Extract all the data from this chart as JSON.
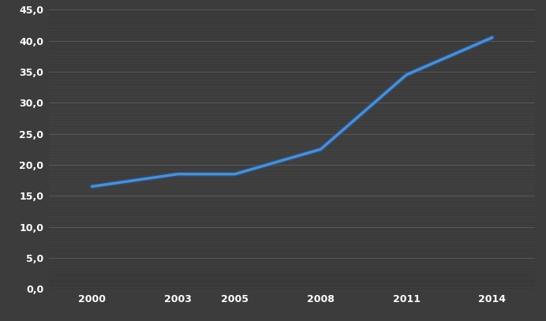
{
  "x": [
    2000,
    2003,
    2005,
    2008,
    2011,
    2014
  ],
  "y": [
    16.5,
    18.5,
    18.5,
    22.5,
    34.5,
    40.5
  ],
  "line_color": "#4d8fcc",
  "line_color_dark": "#2255aa",
  "line_width": 2.5,
  "bg_base": "#3c3c3c",
  "ylim": [
    0,
    45
  ],
  "yticks": [
    0.0,
    5.0,
    10.0,
    15.0,
    20.0,
    25.0,
    30.0,
    35.0,
    40.0,
    45.0
  ],
  "xticks": [
    2000,
    2003,
    2005,
    2008,
    2011,
    2014
  ],
  "grid_color": "#6a6a6a",
  "text_color": "#ffffff",
  "xlim_left": 1998.5,
  "xlim_right": 2015.5
}
